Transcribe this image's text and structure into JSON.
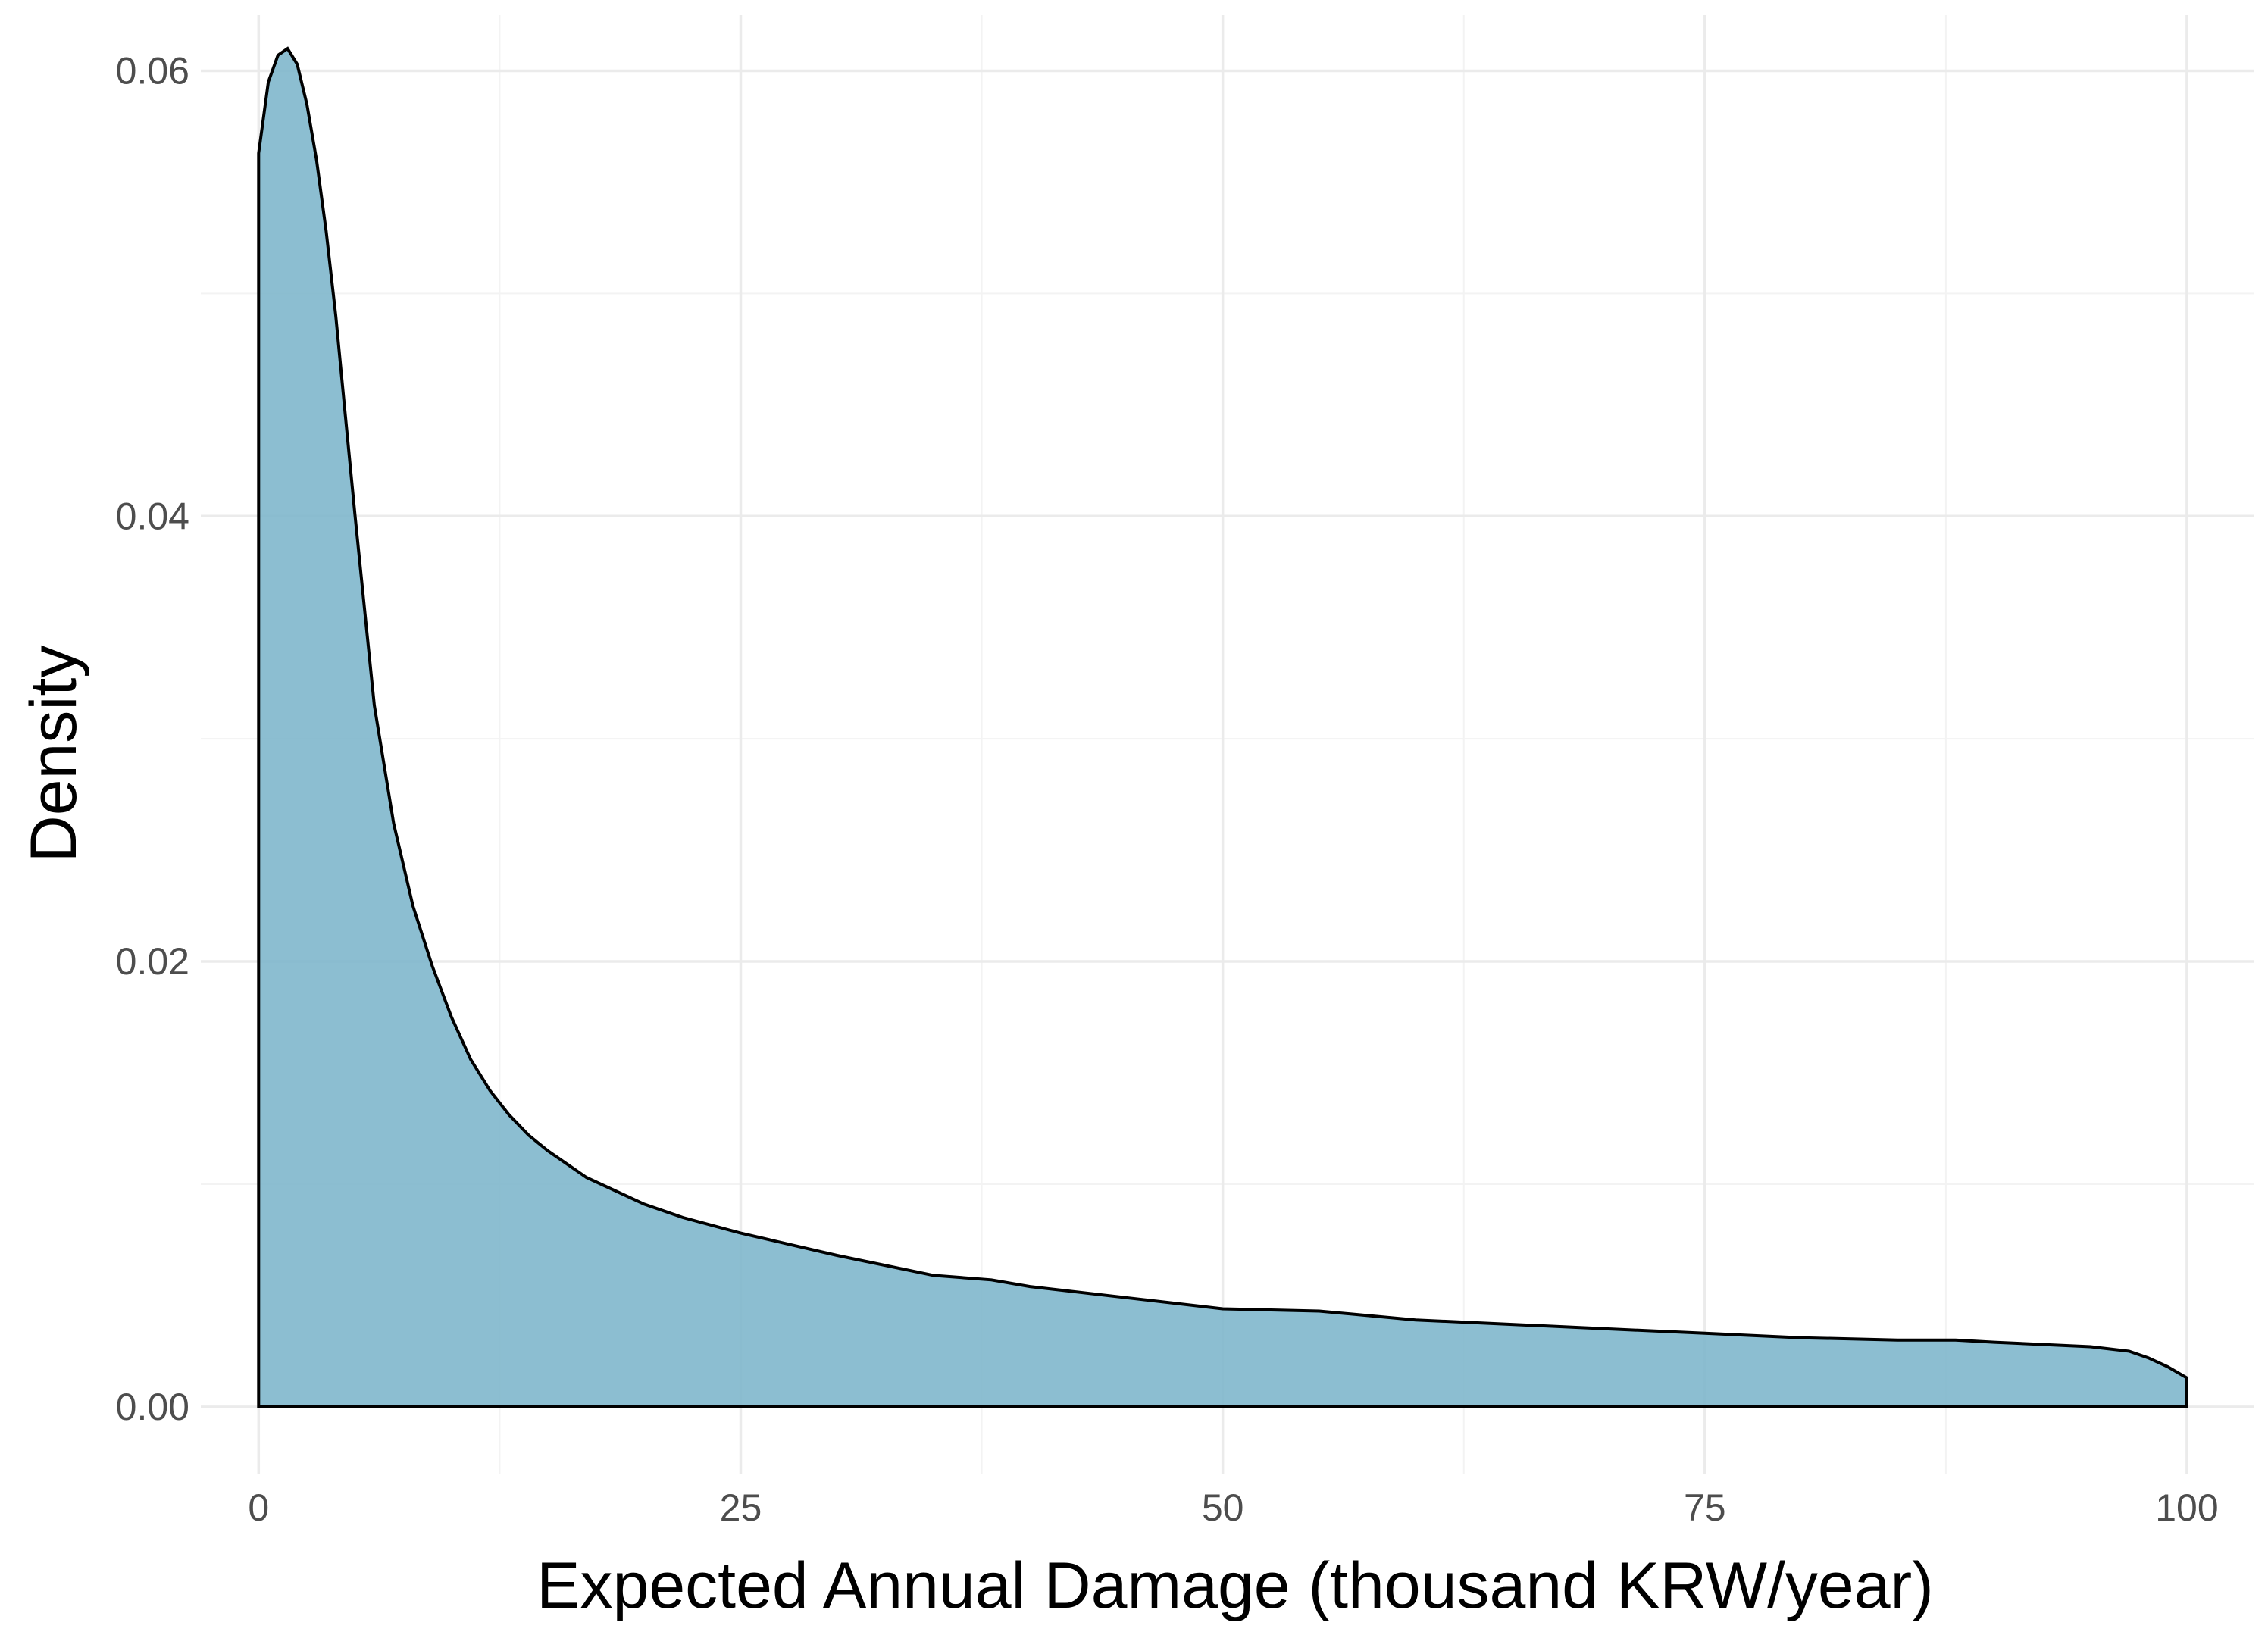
{
  "chart_data": {
    "type": "area",
    "title": "",
    "xlabel": "Expected Annual Damage (thousand KRW/year)",
    "ylabel": "Density",
    "xlim": [
      -3,
      103.5
    ],
    "ylim": [
      -0.003,
      0.0625
    ],
    "x_ticks": [
      0,
      25,
      50,
      75,
      100
    ],
    "x_tick_labels": [
      "0",
      "25",
      "50",
      "75",
      "100"
    ],
    "y_ticks": [
      0,
      0.02,
      0.04,
      0.06
    ],
    "y_tick_labels": [
      "0.00",
      "0.02",
      "0.04",
      "0.06"
    ],
    "grid": true,
    "legend": "none",
    "fill_color": "#7fb7cc",
    "series": [
      {
        "x": [
          0,
          0.5,
          1,
          1.5,
          2,
          2.5,
          3,
          3.5,
          4,
          4.5,
          5,
          6,
          7,
          8,
          9,
          10,
          11,
          12,
          13,
          14,
          15,
          17,
          20,
          22,
          25,
          30,
          35,
          38,
          40,
          45,
          50,
          55,
          60,
          65,
          70,
          75,
          80,
          85,
          88,
          90,
          95,
          97,
          98,
          99,
          100
        ],
        "y": [
          0.0563,
          0.0595,
          0.0607,
          0.061,
          0.0603,
          0.0585,
          0.056,
          0.0528,
          0.049,
          0.0445,
          0.04,
          0.0315,
          0.0262,
          0.0225,
          0.0198,
          0.0175,
          0.0156,
          0.0142,
          0.0131,
          0.0122,
          0.0115,
          0.0103,
          0.0091,
          0.0085,
          0.0078,
          0.0068,
          0.0059,
          0.0057,
          0.0054,
          0.0049,
          0.0044,
          0.0043,
          0.0039,
          0.0037,
          0.0035,
          0.0033,
          0.0031,
          0.003,
          0.003,
          0.0029,
          0.0027,
          0.0025,
          0.0022,
          0.0018,
          0.0013
        ]
      }
    ]
  }
}
